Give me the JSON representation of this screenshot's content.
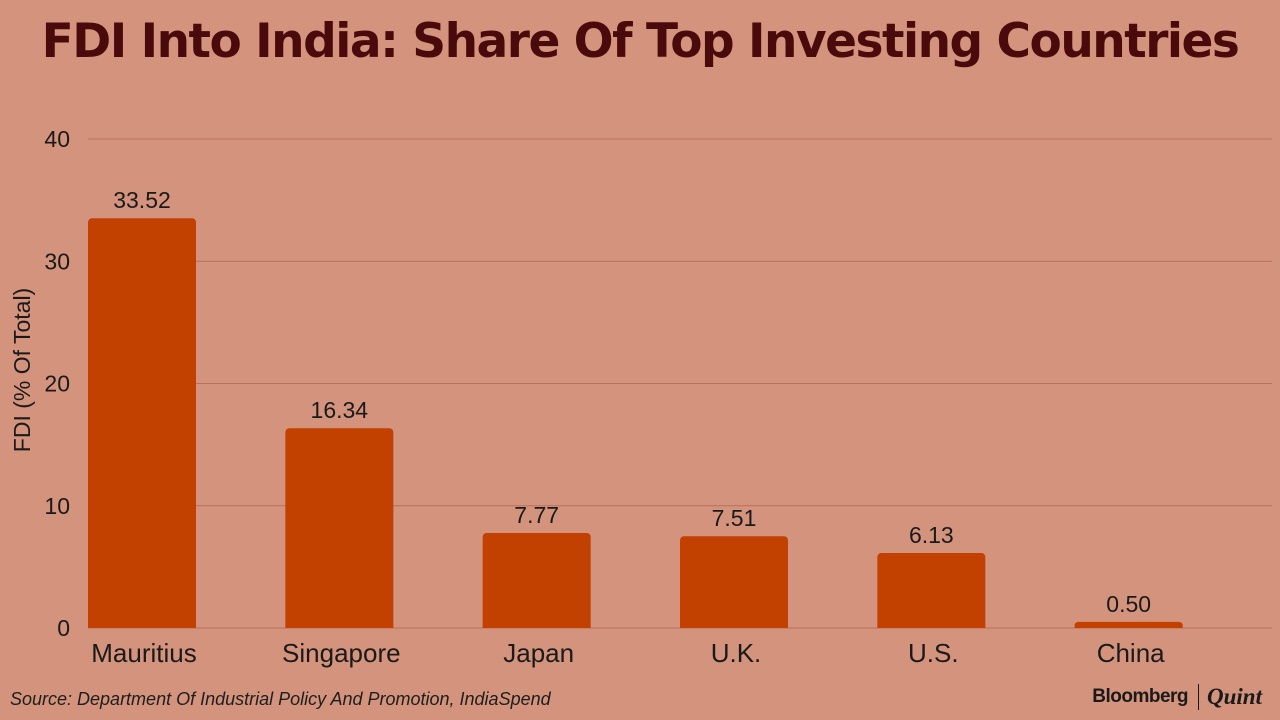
{
  "chart_data": {
    "type": "bar",
    "title": "FDI Into India: Share Of Top Investing Countries",
    "ylabel": "FDI (% Of Total)",
    "xlabel": "",
    "categories": [
      "Mauritius",
      "Singapore",
      "Japan",
      "U.K.",
      "U.S.",
      "China"
    ],
    "values": [
      33.52,
      16.34,
      7.77,
      7.51,
      6.13,
      0.5
    ],
    "value_labels": [
      "33.52",
      "16.34",
      "7.77",
      "7.51",
      "6.13",
      "0.50"
    ],
    "ylim": [
      0,
      40
    ],
    "yticks": [
      0,
      10,
      20,
      30,
      40
    ],
    "grid": true,
    "bar_color": "#c24000",
    "grid_color": "#b9705c"
  },
  "footer": {
    "source": "Source: Department Of Industrial Policy And Promotion, IndiaSpend",
    "brand_left": "Bloomberg",
    "brand_right": "Quint"
  },
  "colors": {
    "background": "#d4937c",
    "title": "#4a0a0c",
    "text": "#1a1a1a"
  }
}
